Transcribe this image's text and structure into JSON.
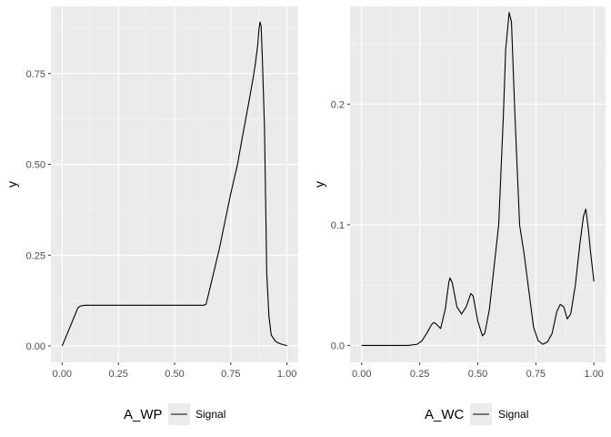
{
  "colors": {
    "panel_background": "#ebebeb",
    "grid_major": "#ffffff",
    "grid_minor": "#f5f5f5",
    "line": "#000000",
    "legend_key_background": "#ebebeb",
    "tick_text": "#4d4d4d"
  },
  "chart_data": [
    {
      "type": "line",
      "title": "",
      "xlabel": "",
      "ylabel": "y",
      "xlim": [
        -0.05,
        1.05
      ],
      "ylim": [
        -0.045,
        0.935
      ],
      "x_ticks": [
        0,
        0.25,
        0.5,
        0.75,
        1
      ],
      "x_tick_labels": [
        "0.00",
        "0.25",
        "0.50",
        "0.75",
        "1.00"
      ],
      "y_ticks": [
        0,
        0.25,
        0.5,
        0.75
      ],
      "y_tick_labels": [
        "0.00",
        "0.25",
        "0.50",
        "0.75"
      ],
      "grid": true,
      "legend": {
        "position": "bottom",
        "title": "A_WP",
        "entries": [
          "Signal"
        ]
      },
      "series": [
        {
          "name": "Signal",
          "x": [
            0,
            0.02,
            0.04,
            0.06,
            0.07,
            0.08,
            0.1,
            0.2,
            0.3,
            0.4,
            0.5,
            0.6,
            0.63,
            0.64,
            0.65,
            0.7,
            0.75,
            0.78,
            0.8,
            0.83,
            0.85,
            0.86,
            0.87,
            0.875,
            0.88,
            0.885,
            0.89,
            0.9,
            0.905,
            0.91,
            0.92,
            0.93,
            0.95,
            0.97,
            1.0
          ],
          "y": [
            0.0,
            0.03,
            0.06,
            0.09,
            0.105,
            0.11,
            0.112,
            0.112,
            0.112,
            0.112,
            0.112,
            0.112,
            0.112,
            0.115,
            0.14,
            0.27,
            0.42,
            0.5,
            0.57,
            0.67,
            0.74,
            0.78,
            0.83,
            0.87,
            0.892,
            0.88,
            0.8,
            0.6,
            0.4,
            0.2,
            0.08,
            0.03,
            0.012,
            0.006,
            0.001
          ]
        }
      ]
    },
    {
      "type": "line",
      "title": "",
      "xlabel": "",
      "ylabel": "y",
      "xlim": [
        -0.05,
        1.05
      ],
      "ylim": [
        -0.014,
        0.281
      ],
      "x_ticks": [
        0,
        0.25,
        0.5,
        0.75,
        1
      ],
      "x_tick_labels": [
        "0.00",
        "0.25",
        "0.50",
        "0.75",
        "1.00"
      ],
      "y_ticks": [
        0,
        0.1,
        0.2
      ],
      "y_tick_labels": [
        "0.0",
        "0.1",
        "0.2"
      ],
      "grid": true,
      "legend": {
        "position": "bottom",
        "title": "A_WC",
        "entries": [
          "Signal"
        ]
      },
      "series": [
        {
          "name": "Signal",
          "x": [
            0,
            0.05,
            0.1,
            0.15,
            0.2,
            0.24,
            0.26,
            0.28,
            0.3,
            0.31,
            0.32,
            0.34,
            0.36,
            0.375,
            0.38,
            0.39,
            0.41,
            0.43,
            0.45,
            0.47,
            0.48,
            0.5,
            0.52,
            0.53,
            0.55,
            0.57,
            0.59,
            0.61,
            0.62,
            0.635,
            0.645,
            0.66,
            0.68,
            0.7,
            0.72,
            0.74,
            0.76,
            0.78,
            0.8,
            0.82,
            0.84,
            0.855,
            0.87,
            0.885,
            0.9,
            0.92,
            0.94,
            0.955,
            0.965,
            0.975,
            0.985,
            1.0
          ],
          "y": [
            0,
            0,
            0,
            0,
            0,
            0.001,
            0.004,
            0.01,
            0.017,
            0.019,
            0.018,
            0.014,
            0.03,
            0.052,
            0.056,
            0.052,
            0.032,
            0.026,
            0.032,
            0.043,
            0.041,
            0.02,
            0.008,
            0.01,
            0.03,
            0.065,
            0.1,
            0.19,
            0.245,
            0.276,
            0.268,
            0.19,
            0.1,
            0.075,
            0.045,
            0.015,
            0.004,
            0.001,
            0.003,
            0.01,
            0.028,
            0.034,
            0.032,
            0.022,
            0.026,
            0.05,
            0.085,
            0.107,
            0.113,
            0.098,
            0.078,
            0.053
          ]
        }
      ]
    }
  ]
}
